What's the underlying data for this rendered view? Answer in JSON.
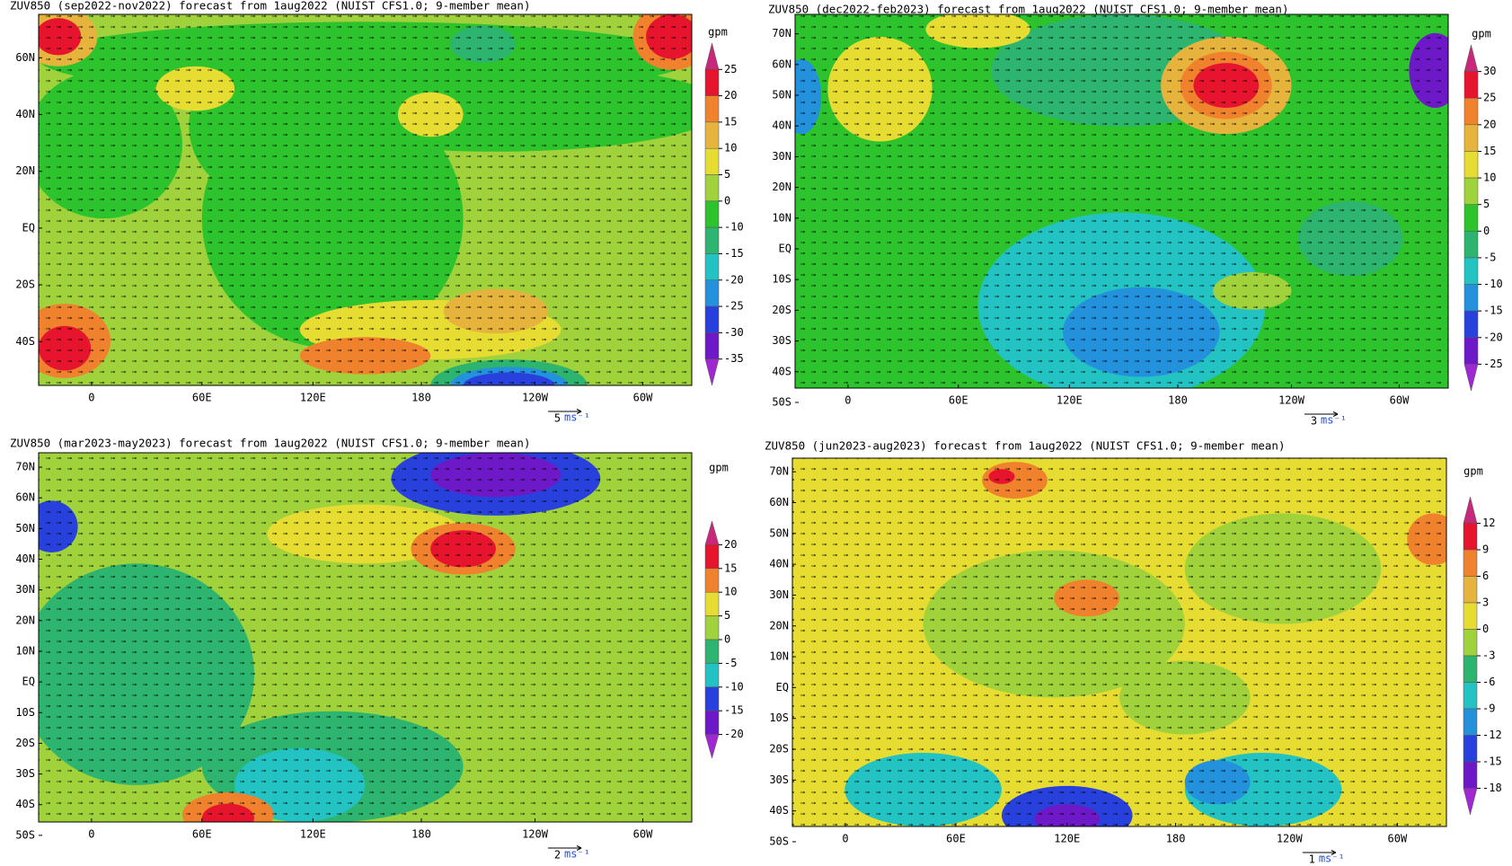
{
  "panels": [
    {
      "title": "ZUV850 (sep2022-nov2022) forecast from 1aug2022 (NUIST CFS1.0; 9-member mean)",
      "lat_labels": [
        "60N",
        "40N",
        "20N",
        "EQ",
        "20S",
        "40S"
      ],
      "lon_labels": [
        "0",
        "60E",
        "120E",
        "180",
        "120W",
        "60W"
      ],
      "unit": "gpm",
      "levels": [
        25,
        20,
        15,
        10,
        5,
        0,
        -10,
        -15,
        -20,
        -25,
        -30,
        -35
      ],
      "colors": [
        "#c8287a",
        "#e6142d",
        "#f0822d",
        "#e6b43c",
        "#e6dc32",
        "#a0d23c",
        "#2dc32d",
        "#2db46e",
        "#23c3c3",
        "#2391dc",
        "#2841dc",
        "#6e19c8",
        "#a028d2"
      ],
      "ref_speed": 5,
      "ref_unit": "ms⁻¹"
    },
    {
      "title": "ZUV850 (dec2022-feb2023) forecast from 1aug2022 (NUIST CFS1.0; 9-member mean)",
      "lat_labels": [
        "70N",
        "60N",
        "50N",
        "40N",
        "30N",
        "20N",
        "10N",
        "EQ",
        "10S",
        "20S",
        "30S",
        "40S",
        "50S"
      ],
      "lon_labels": [
        "0",
        "60E",
        "120E",
        "180",
        "120W",
        "60W"
      ],
      "unit": "gpm",
      "levels": [
        30,
        25,
        20,
        15,
        10,
        5,
        0,
        -5,
        -10,
        -15,
        -20,
        -25
      ],
      "colors": [
        "#c8287a",
        "#e6142d",
        "#f0822d",
        "#e6b43c",
        "#e6dc32",
        "#a0d23c",
        "#2dc32d",
        "#2db46e",
        "#23c3c3",
        "#2391dc",
        "#2841dc",
        "#6e19c8",
        "#a028d2"
      ],
      "ref_speed": 3,
      "ref_unit": "ms⁻¹"
    },
    {
      "title": "ZUV850 (mar2023-may2023) forecast from 1aug2022 (NUIST CFS1.0; 9-member mean)",
      "lat_labels": [
        "70N",
        "60N",
        "50N",
        "40N",
        "30N",
        "20N",
        "10N",
        "EQ",
        "10S",
        "20S",
        "30S",
        "40S",
        "50S"
      ],
      "lon_labels": [
        "0",
        "60E",
        "120E",
        "180",
        "120W",
        "60W"
      ],
      "unit": "gpm",
      "levels": [
        20,
        15,
        10,
        5,
        0,
        -5,
        -10,
        -15,
        -20
      ],
      "colors": [
        "#c8287a",
        "#e6142d",
        "#f0822d",
        "#e6dc32",
        "#a0d23c",
        "#2db46e",
        "#23c3c3",
        "#2841dc",
        "#6e19c8",
        "#a028d2"
      ],
      "ref_speed": 2,
      "ref_unit": "ms⁻¹"
    },
    {
      "title": "ZUV850 (jun2023-aug2023) forecast from 1aug2022 (NUIST CFS1.0; 9-member mean)",
      "lat_labels": [
        "70N",
        "60N",
        "50N",
        "40N",
        "30N",
        "20N",
        "10N",
        "EQ",
        "10S",
        "20S",
        "30S",
        "40S",
        "50S"
      ],
      "lon_labels": [
        "0",
        "60E",
        "120E",
        "180",
        "120W",
        "60W"
      ],
      "unit": "gpm",
      "levels": [
        12,
        9,
        6,
        3,
        0,
        -3,
        -6,
        -9,
        -12,
        -15,
        -18
      ],
      "colors": [
        "#c8287a",
        "#e6142d",
        "#f0822d",
        "#e6b43c",
        "#e6dc32",
        "#a0d23c",
        "#2db46e",
        "#23c3c3",
        "#2391dc",
        "#2841dc",
        "#6e19c8",
        "#a028d2"
      ],
      "ref_speed": 1,
      "ref_unit": "ms⁻¹"
    }
  ]
}
